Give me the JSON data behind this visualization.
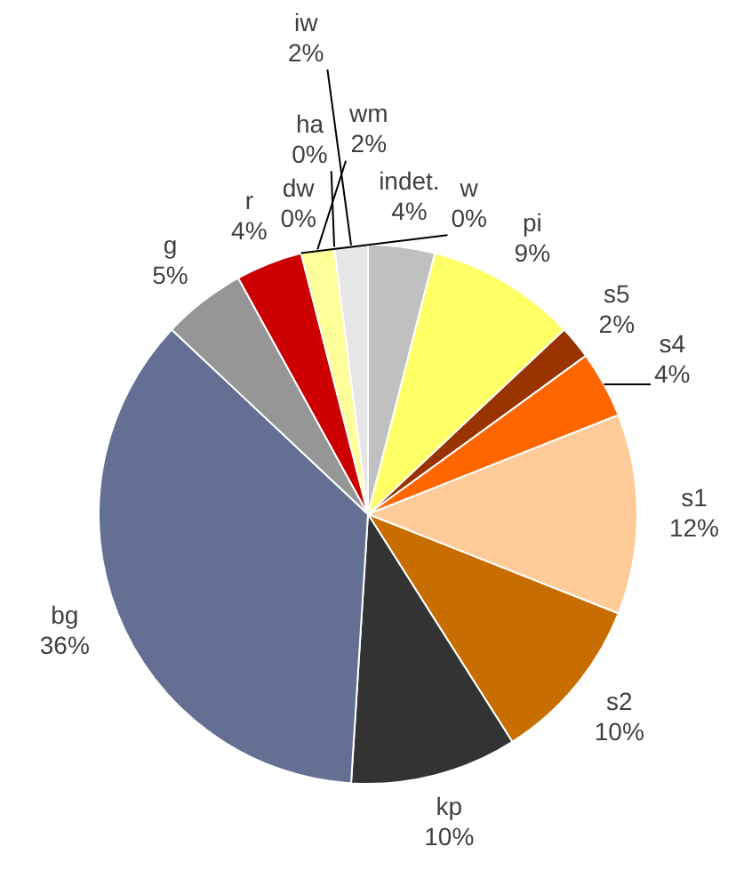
{
  "chart_data": {
    "type": "pie",
    "categories": [
      "indet.",
      "pi",
      "s5",
      "s4",
      "s1",
      "s2",
      "kp",
      "bg",
      "g",
      "r",
      "dw",
      "w",
      "wm",
      "ha",
      "iw"
    ],
    "values": [
      4,
      9,
      2,
      4,
      12,
      10,
      10,
      36,
      5,
      4,
      0,
      0,
      2,
      0,
      2
    ],
    "value_labels": [
      "4%",
      "9%",
      "2%",
      "4%",
      "12%",
      "10%",
      "10%",
      "36%",
      "5%",
      "4%",
      "0%",
      "0%",
      "2%",
      "0%",
      "2%"
    ],
    "colors": [
      "#c0c0c0",
      "#ffff66",
      "#993300",
      "#ff6600",
      "#ffcc99",
      "#c86e00",
      "#333333",
      "#636f93",
      "#969696",
      "#cc0000",
      "#7030a0",
      "#ffffff",
      "#ffff99",
      "#ffff00",
      "#e6e6e6"
    ],
    "legend": false
  }
}
